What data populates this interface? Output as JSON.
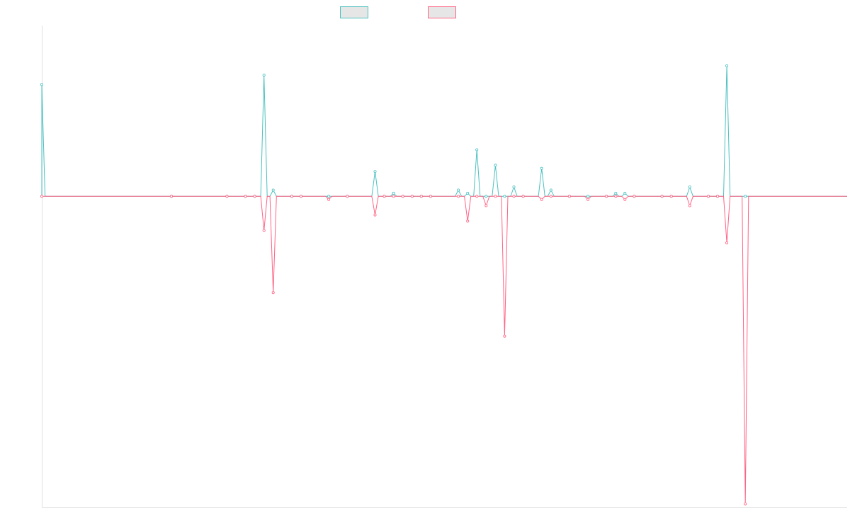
{
  "chart_data": {
    "type": "line",
    "title": "",
    "xlabel": "",
    "ylabel": "",
    "xlim": [
      0,
      87
    ],
    "ylim": [
      -1.0,
      0.55
    ],
    "grid": false,
    "legend": {
      "position": "top-center"
    },
    "x": [
      0,
      14,
      20,
      22,
      23,
      24,
      25,
      27,
      28,
      31,
      33,
      36,
      37,
      38,
      39,
      40,
      41,
      42,
      45,
      46,
      47,
      48,
      49,
      50,
      51,
      52,
      54,
      55,
      57,
      59,
      61,
      62,
      63,
      64,
      67,
      68,
      70,
      72,
      73,
      74,
      76
    ],
    "series": [
      {
        "name": "",
        "color": "#4bc0c0",
        "values": [
          0.36,
          0,
          0,
          0,
          0,
          0.39,
          0.02,
          0,
          0,
          0,
          0,
          0.08,
          0,
          0.01,
          0,
          0,
          0,
          0,
          0.02,
          0.01,
          0.15,
          0,
          0.1,
          0,
          0.03,
          0,
          0.09,
          0.02,
          0,
          0,
          0,
          0.01,
          0.01,
          0,
          0,
          0,
          0.03,
          0,
          0,
          0.42,
          0
        ]
      },
      {
        "name": "",
        "color": "#ff6384",
        "values": [
          0,
          0,
          0,
          0,
          0,
          -0.11,
          -0.31,
          0,
          0,
          -0.01,
          0,
          -0.06,
          0,
          0,
          0,
          0,
          0,
          0,
          0,
          -0.08,
          0,
          -0.03,
          0,
          -0.45,
          0,
          0,
          -0.01,
          0,
          0,
          -0.01,
          0,
          0,
          -0.01,
          0,
          0,
          0,
          -0.03,
          0,
          0,
          -0.15,
          -0.99
        ]
      }
    ]
  }
}
